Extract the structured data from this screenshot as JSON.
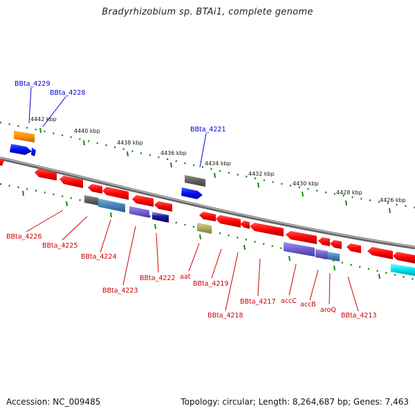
{
  "title": "Bradyrhizobium sp. BTAi1, complete genome",
  "footer": {
    "accession": "Accession: NC_009485",
    "topology": "Topology: circular; Length: 8,264,687 bp; Genes: 7,463"
  },
  "scale_labels": [
    "4442 kbp",
    "4440 kbp",
    "4438 kbp",
    "4436 kbp",
    "4434 kbp",
    "4432 kbp",
    "4430 kbp",
    "4428 kbp",
    "4426 kbp"
  ],
  "gene_labels_top": [
    "BBta_4229",
    "BBta_4228",
    "BBta_4221"
  ],
  "gene_labels_bottom": [
    "BBta_4226",
    "BBta_4225",
    "BBta_4224",
    "BBta_4223",
    "BBta_4222",
    "aat",
    "BBta_4219",
    "BBta_4218",
    "BBta_4217",
    "accC",
    "accB",
    "aroQ",
    "BBta_4213"
  ],
  "colors": {
    "forward_label": "#0000cc",
    "reverse_label": "#cc0000",
    "backbone": "#888888",
    "scale_tick": "#118811"
  }
}
